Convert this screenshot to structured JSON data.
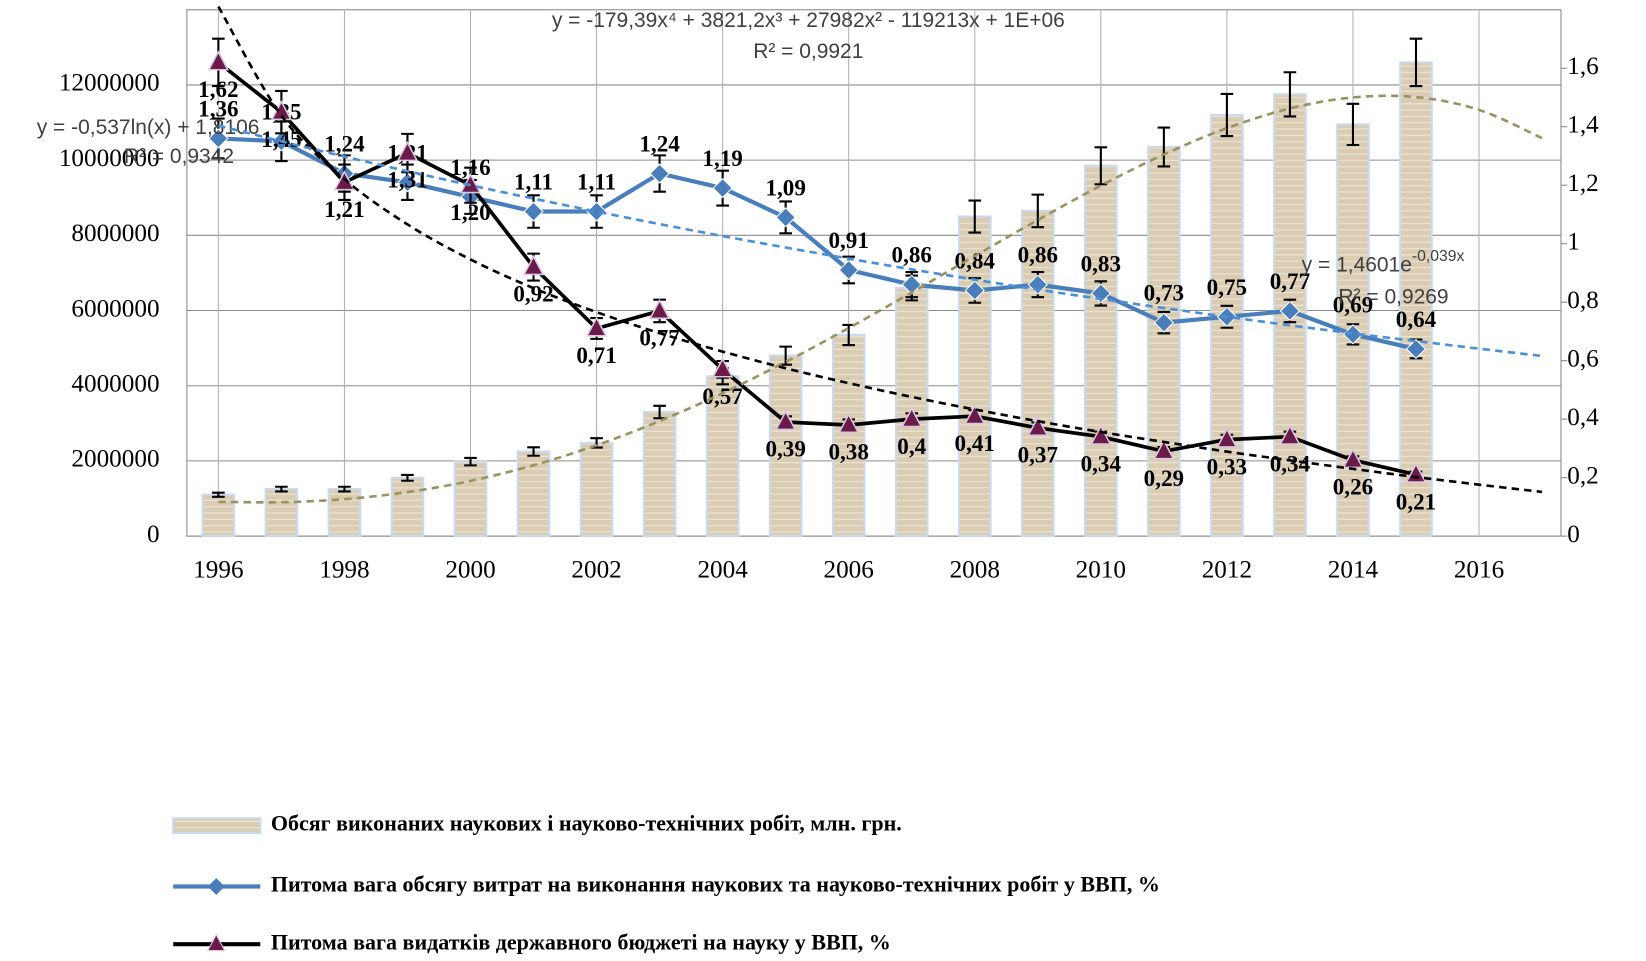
{
  "chart_data": {
    "type": "combo",
    "x": [
      1996,
      1997,
      1998,
      1999,
      2000,
      2001,
      2002,
      2003,
      2004,
      2005,
      2006,
      2007,
      2008,
      2009,
      2010,
      2011,
      2012,
      2013,
      2014,
      2015
    ],
    "xlim": [
      1995.5,
      2017.3
    ],
    "xticks": [
      1996,
      1998,
      2000,
      2002,
      2004,
      2006,
      2008,
      2010,
      2012,
      2014,
      2016
    ],
    "ylim": [
      0,
      14000000
    ],
    "yticks": [
      0,
      2000000,
      4000000,
      6000000,
      8000000,
      10000000,
      12000000
    ],
    "y2lim": [
      0,
      1.8
    ],
    "y2ticks": [
      0,
      {
        "value": 0.2,
        "label": "0,2"
      },
      {
        "value": 0.4,
        "label": "0,4"
      },
      {
        "value": 0.6,
        "label": "0,6"
      },
      {
        "value": 0.8,
        "label": "0,8"
      },
      1,
      {
        "value": 1.2,
        "label": "1,2"
      },
      {
        "value": 1.4,
        "label": "1,4"
      },
      {
        "value": 1.6,
        "label": "1,6"
      }
    ],
    "grid": true,
    "legend": "bottom",
    "error_percent": 5,
    "series": [
      {
        "name": "Обсяг виконаних наукових і науково-технічних робіт, млн. грн.",
        "type": "bar",
        "color": "#d9ccb2",
        "values": [
          1100000,
          1250000,
          1250000,
          1550000,
          1980000,
          2250000,
          2480000,
          3300000,
          4250000,
          4800000,
          5350000,
          6600000,
          8500000,
          8650000,
          9850000,
          10350000,
          11200000,
          11750000,
          10950000,
          12600000
        ]
      },
      {
        "name": "Питома вага обсягу витрат на виконання наукових та науково-технічних робіт у ВВП, %",
        "type": "line",
        "marker": "diamond",
        "color": "#4a7ebb",
        "axis": "y2",
        "values": [
          1.36,
          1.35,
          1.24,
          1.21,
          1.16,
          1.11,
          1.11,
          1.24,
          1.19,
          1.09,
          0.91,
          0.86,
          0.84,
          0.86,
          0.83,
          0.73,
          0.75,
          0.77,
          0.69,
          0.64
        ],
        "value_labels": [
          "1,36",
          "1,35",
          "1,24",
          "1,21",
          "1,16",
          "1,11",
          "1,11",
          "1,24",
          "1,19",
          "1,09",
          "0,91",
          "0,86",
          "0,84",
          "0,86",
          "0,83",
          "0,73",
          "0,75",
          "0,77",
          "0,69",
          "0,64"
        ]
      },
      {
        "name": "Питома вага видатків державного бюджеті на науку у ВВП, %",
        "type": "line",
        "marker": "triangle",
        "color": "#000000",
        "axis": "y2",
        "values": [
          1.62,
          1.45,
          1.21,
          1.31,
          1.2,
          0.92,
          0.71,
          0.77,
          0.57,
          0.39,
          0.38,
          0.4,
          0.41,
          0.37,
          0.34,
          0.29,
          0.33,
          0.34,
          0.26,
          0.21
        ],
        "value_labels": [
          "1,62",
          "1,45",
          "1,21",
          "1,31",
          "1,20",
          "0,92",
          "0,71",
          "0,77",
          "0,57",
          "0,39",
          "0,38",
          "0,4",
          "0,41",
          "0,37",
          "0,34",
          "0,29",
          "0,33",
          "0,34",
          "0,26",
          "0,21"
        ]
      }
    ],
    "trend_x": [
      1996,
      1997,
      1998,
      1999,
      2000,
      2001,
      2002,
      2003,
      2004,
      2005,
      2006,
      2007,
      2008,
      2009,
      2010,
      2011,
      2012,
      2013,
      2014,
      2015,
      2016,
      2017
    ],
    "trendlines": [
      {
        "type": "polynomial",
        "color": "#9c9160",
        "equation": "y = -179,39x⁴ + 3821,2x³ + 27982x² - 119213x + 1E+06",
        "r_squared": "R² = 0,9921",
        "values": [
          912000,
          901000,
          983000,
          1169000,
          1469000,
          1885000,
          2417000,
          3059000,
          3802000,
          4633000,
          5534000,
          6482000,
          7451000,
          8409000,
          9323000,
          10151000,
          10851000,
          11374000,
          11668000,
          11676000,
          11337000,
          10586000
        ]
      },
      {
        "type": "logarithmic",
        "color": "#000000",
        "axis": "y2",
        "equation": "y = -0,537ln(x) + 1,8106",
        "r_squared": "R² = 0,9342",
        "values": [
          1.811,
          1.438,
          1.221,
          1.066,
          0.946,
          0.848,
          0.766,
          0.694,
          0.631,
          0.574,
          0.523,
          0.476,
          0.433,
          0.393,
          0.356,
          0.322,
          0.289,
          0.259,
          0.23,
          0.202,
          0.176,
          0.151
        ]
      },
      {
        "type": "exponential",
        "color": "#4a8fd8",
        "axis": "y2",
        "equation": "y = 1,4601e",
        "equation_sup": "-0,039x",
        "r_squared": "R² = 0,9269",
        "values": [
          1.404,
          1.35,
          1.298,
          1.248,
          1.2,
          1.154,
          1.11,
          1.067,
          1.026,
          0.987,
          0.949,
          0.912,
          0.877,
          0.843,
          0.811,
          0.78,
          0.75,
          0.721,
          0.693,
          0.667,
          0.641,
          0.616
        ]
      }
    ]
  }
}
